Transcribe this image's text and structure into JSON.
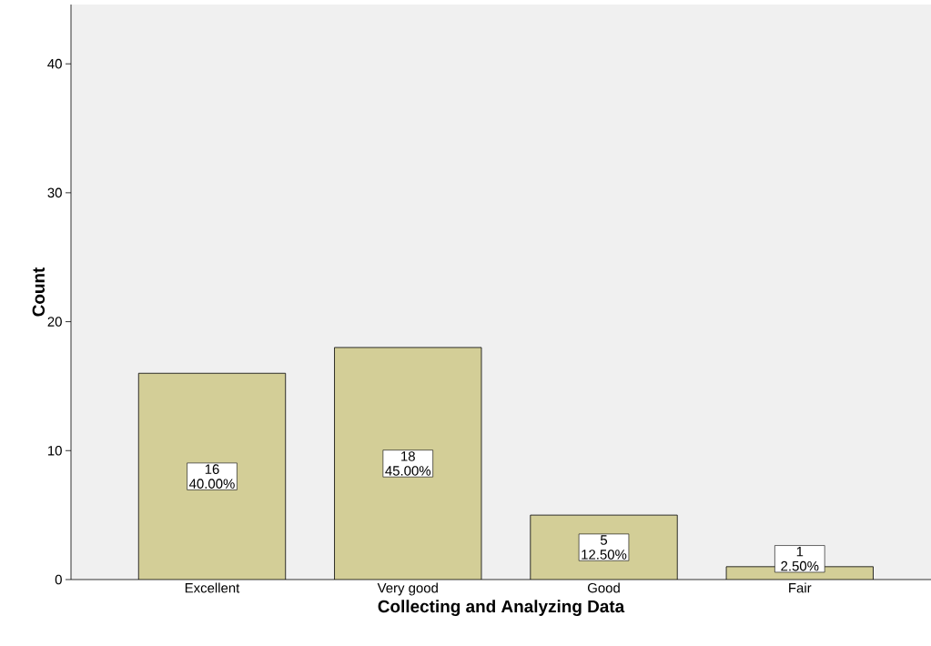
{
  "chart_data": {
    "type": "bar",
    "xlabel": "Collecting and Analyzing Data",
    "ylabel": "Count",
    "categories": [
      "Excellent",
      "Very good",
      "Good",
      "Fair"
    ],
    "values": [
      16,
      18,
      5,
      1
    ],
    "value_labels": [
      "16 40.00%",
      "18 45.00%",
      "5 12.50%",
      "1 2.50%"
    ],
    "color": "#d3ce97",
    "ylim": [
      0,
      44.6
    ],
    "yticks": [
      0,
      10,
      20,
      30,
      40
    ],
    "grid": false
  }
}
